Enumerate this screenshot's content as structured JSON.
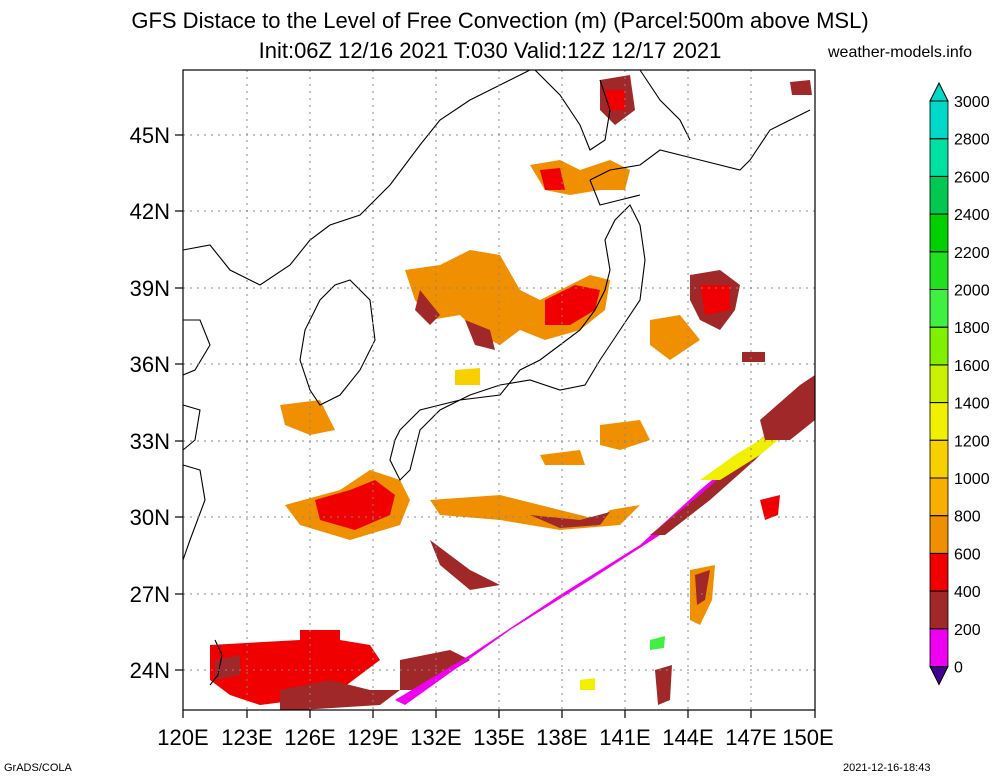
{
  "header": {
    "title_line1": "GFS Distace to the Level of Free Convection (m) (Parcel:500m above MSL)",
    "title_line2": "Init:06Z 12/16 2021 T:030 Valid:12Z 12/17 2021",
    "site": "weather-models.info"
  },
  "axes": {
    "lon_labels": [
      "120E",
      "123E",
      "126E",
      "129E",
      "132E",
      "135E",
      "138E",
      "141E",
      "144E",
      "147E",
      "150E"
    ],
    "lat_labels": [
      "24N",
      "27N",
      "30N",
      "33N",
      "36N",
      "39N",
      "42N",
      "45N"
    ]
  },
  "colorbar": {
    "labels": [
      "3000",
      "2800",
      "2600",
      "2400",
      "2200",
      "2000",
      "1800",
      "1600",
      "1400",
      "1200",
      "1000",
      "800",
      "600",
      "400",
      "200",
      "0"
    ],
    "colors": [
      "#00d8c8",
      "#00e0a0",
      "#00c850",
      "#00d000",
      "#20e020",
      "#40f040",
      "#80f000",
      "#c8f000",
      "#f0f000",
      "#f8d000",
      "#f8b000",
      "#f09000",
      "#f00000",
      "#a02828",
      "#f000f0",
      "#400090"
    ]
  },
  "footer": {
    "left": "GrADS/COLA",
    "right": "2021-12-16-18:43"
  }
}
